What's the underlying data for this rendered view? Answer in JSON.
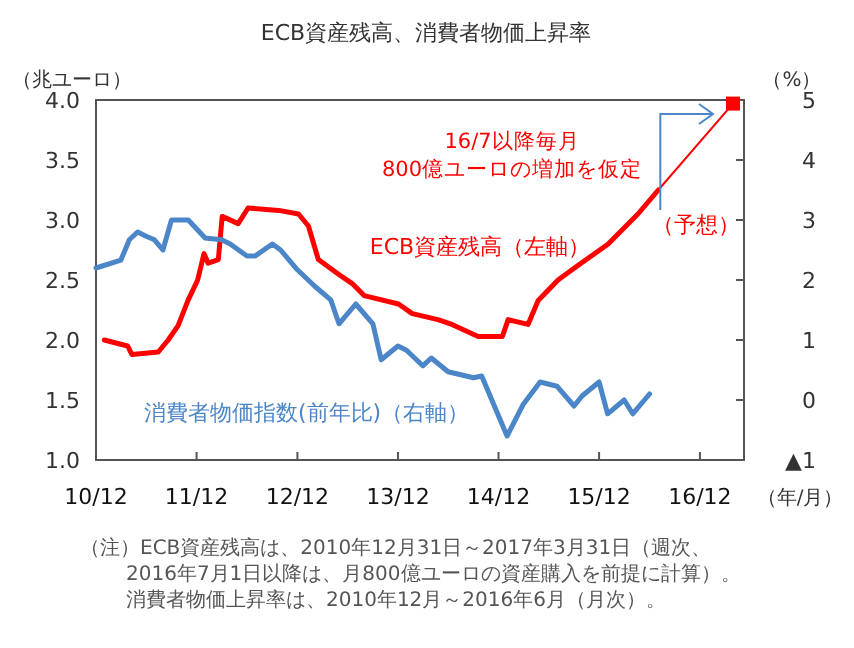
{
  "chart_data": {
    "type": "line",
    "title": "ECB資産残高、消費者物価上昇率",
    "ylabel": "（兆ユーロ）",
    "y2label": "（%）",
    "xlabel": "（年/月）",
    "xlim": [
      "2010-12",
      "2017-05-10"
    ],
    "xticks": [
      {
        "value": "2010-12",
        "label": "10/12"
      },
      {
        "value": "2011-12",
        "label": "11/12"
      },
      {
        "value": "2012-12",
        "label": "12/12"
      },
      {
        "value": "2013-12",
        "label": "13/12"
      },
      {
        "value": "2014-12",
        "label": "14/12"
      },
      {
        "value": "2015-12",
        "label": "15/12"
      },
      {
        "value": "2016-12",
        "label": "16/12"
      }
    ],
    "ylim": [
      1.0,
      4.0
    ],
    "yticks": [
      {
        "value": 1.0,
        "label": "1.0"
      },
      {
        "value": 1.5,
        "label": "1.5"
      },
      {
        "value": 2.0,
        "label": "2.0"
      },
      {
        "value": 2.5,
        "label": "2.5"
      },
      {
        "value": 3.0,
        "label": "3.0"
      },
      {
        "value": 3.5,
        "label": "3.5"
      },
      {
        "value": 4.0,
        "label": "4.0"
      }
    ],
    "y2lim": [
      -1,
      5
    ],
    "y2ticks": [
      {
        "value": -1,
        "label": "▲1"
      },
      0,
      1,
      2,
      3,
      4,
      5
    ],
    "annotations": [
      {
        "text": "16/7以降毎月\n800億ユーロの増加を仮定",
        "x": "2016-07-03",
        "y": 3.25
      },
      "（注）ECB資産残高は、2010年12月31日～2017年3月31日（週次、",
      "2016年7月1日以降は、月800億ユーロの資産購入を前提に計算）。",
      "消費者物価上昇率は、2010年12月～2016年6月（月次）。"
    ],
    "series": [
      {
        "name": "ECB資産残高（左軸）",
        "color": "#ff0000",
        "x": [
          "2010-12-31",
          "2011-03-26",
          "2011-04-10",
          "2011-07-15",
          "2011-08-20",
          "2011-09-25",
          "2011-10-31",
          "2011-12-05",
          "2011-12-28",
          "2012-01-12",
          "2012-02-18",
          "2012-03-03",
          "2012-04-30",
          "2012-06-05",
          "2012-09-24",
          "2012-12-05",
          "2013-01-10",
          "2013-02-15",
          "2013-04-28",
          "2013-06-18",
          "2013-07-31",
          "2013-12-03",
          "2014-01-22",
          "2014-04-25",
          "2014-06-15",
          "2014-09-18",
          "2014-12-15",
          "2015-01-05",
          "2015-03-18",
          "2015-04-24",
          "2015-07-05",
          "2015-09-15",
          "2016-01-03",
          "2016-04-20",
          "2016-07-03"
        ],
        "values": [
          2.0,
          1.95,
          1.88,
          1.9,
          2.0,
          2.12,
          2.33,
          2.5,
          2.72,
          2.64,
          2.67,
          3.03,
          2.97,
          3.1,
          3.08,
          3.05,
          2.95,
          2.67,
          2.55,
          2.47,
          2.37,
          2.3,
          2.22,
          2.17,
          2.13,
          2.03,
          2.03,
          2.17,
          2.13,
          2.33,
          2.5,
          2.62,
          2.8,
          3.05,
          3.25
        ]
      },
      {
        "name": "（予想）",
        "color": "#ff0000",
        "marker": "square",
        "x": [
          "2016-07-03",
          "2017-03-31"
        ],
        "values": [
          3.25,
          3.97
        ]
      },
      {
        "name": "消費者物価指数(前年比)（右軸）",
        "color": "#4a86c8",
        "axis": "y2",
        "x": [
          "2010-12",
          "2011-03",
          "2011-04",
          "2011-05",
          "2011-06",
          "2011-07",
          "2011-08",
          "2011-09",
          "2011-11",
          "2012-01",
          "2012-03",
          "2012-04",
          "2012-06",
          "2012-07",
          "2012-09",
          "2012-10",
          "2012-12",
          "2013-02",
          "2013-04",
          "2013-05",
          "2013-07",
          "2013-09",
          "2013-10",
          "2013-12",
          "2014-01",
          "2014-03",
          "2014-04",
          "2014-06",
          "2014-09",
          "2014-10",
          "2015-01",
          "2015-03",
          "2015-05",
          "2015-07",
          "2015-09",
          "2015-10",
          "2015-12",
          "2016-01",
          "2016-03",
          "2016-04",
          "2016-06"
        ],
        "values": [
          2.2,
          2.33,
          2.67,
          2.8,
          2.73,
          2.67,
          2.5,
          3.0,
          3.0,
          2.7,
          2.67,
          2.6,
          2.4,
          2.4,
          2.6,
          2.5,
          2.17,
          1.9,
          1.67,
          1.27,
          1.6,
          1.27,
          0.67,
          0.9,
          0.83,
          0.57,
          0.7,
          0.47,
          0.37,
          0.4,
          -0.6,
          -0.07,
          0.3,
          0.23,
          -0.1,
          0.07,
          0.3,
          -0.23,
          0.0,
          -0.23,
          0.1
        ]
      }
    ]
  }
}
